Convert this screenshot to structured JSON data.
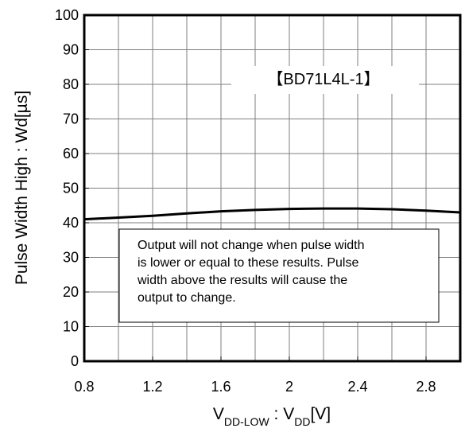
{
  "chart_data": {
    "type": "line",
    "title": "",
    "xlabel": {
      "main": "V",
      "sub": "DD-LOW",
      "separator": " : ",
      "main2": "V",
      "sub2": "DD",
      "unit": "[V]"
    },
    "ylabel": "Pulse Width High : Wd[µs]",
    "xlim": [
      0.8,
      3.0
    ],
    "ylim": [
      0,
      100
    ],
    "x_ticks": [
      0.8,
      1.2,
      1.6,
      2.0,
      2.4,
      2.8
    ],
    "x_tick_labels": [
      "0.8",
      "1.2",
      "1.6",
      "2",
      "2.4",
      "2.8"
    ],
    "y_ticks": [
      0,
      10,
      20,
      30,
      40,
      50,
      60,
      70,
      80,
      90,
      100
    ],
    "y_tick_labels": [
      "0",
      "10",
      "20",
      "30",
      "40",
      "50",
      "60",
      "70",
      "80",
      "90",
      "100"
    ],
    "grid": true,
    "minor_x_step": 0.2,
    "series": [
      {
        "color": "#000000",
        "x": [
          0.8,
          1.0,
          1.2,
          1.4,
          1.6,
          1.8,
          2.0,
          2.2,
          2.4,
          2.6,
          2.8,
          3.0
        ],
        "y": [
          41.0,
          41.5,
          42.0,
          42.7,
          43.3,
          43.7,
          44.0,
          44.1,
          44.1,
          43.9,
          43.5,
          43.0
        ]
      }
    ],
    "annotations": [
      {
        "id": "part",
        "text": "【BD71L4L-1】"
      },
      {
        "id": "note",
        "lines": [
          "Output will not change when pulse width",
          "is lower or equal to these results. Pulse",
          "width above the results will cause the",
          "output to change."
        ]
      }
    ]
  }
}
